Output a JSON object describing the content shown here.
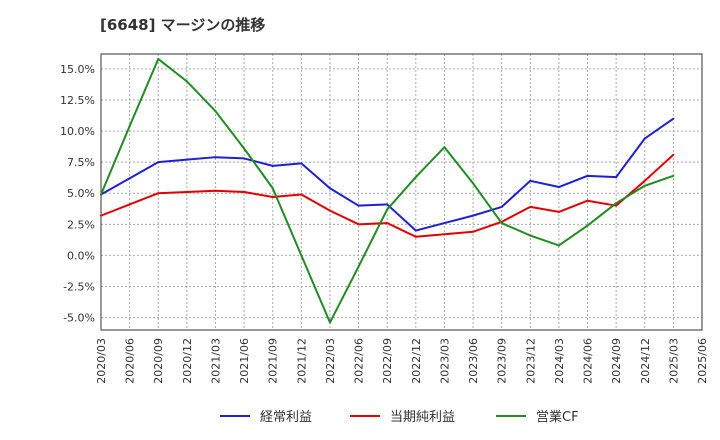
{
  "chart_data": {
    "type": "line",
    "title": "[6648]  マージンの推移",
    "x": [
      "2020/03",
      "2020/06",
      "2020/09",
      "2020/12",
      "2021/03",
      "2021/06",
      "2021/09",
      "2021/12",
      "2022/03",
      "2022/06",
      "2022/09",
      "2022/12",
      "2023/03",
      "2023/06",
      "2023/09",
      "2023/12",
      "2024/03",
      "2024/06",
      "2024/09",
      "2024/12",
      "2025/03",
      "2025/06"
    ],
    "y_ticks": [
      "15.0%",
      "12.5%",
      "10.0%",
      "7.5%",
      "5.0%",
      "2.5%",
      "0.0%",
      "-2.5%",
      "-5.0%"
    ],
    "ylim": [
      -6.0,
      16.2
    ],
    "grid": true,
    "legend_position": "bottom",
    "series": [
      {
        "name": "経常利益",
        "color": "#1f1fd0",
        "values": [
          4.9,
          6.2,
          7.5,
          7.7,
          7.9,
          7.8,
          7.2,
          7.4,
          5.4,
          4.0,
          4.1,
          2.0,
          2.6,
          3.2,
          3.9,
          6.0,
          5.5,
          6.4,
          6.3,
          9.4,
          11.0,
          null
        ]
      },
      {
        "name": "当期純利益",
        "color": "#e00000",
        "values": [
          3.2,
          4.1,
          5.0,
          5.1,
          5.2,
          5.1,
          4.7,
          4.9,
          3.6,
          2.5,
          2.6,
          1.5,
          1.7,
          1.9,
          2.7,
          3.9,
          3.5,
          4.4,
          4.0,
          6.0,
          8.1,
          null
        ]
      },
      {
        "name": "営業CF",
        "color": "#228b22",
        "values": [
          4.9,
          10.4,
          15.8,
          14.0,
          11.6,
          8.6,
          5.4,
          0.0,
          -5.4,
          -0.9,
          3.7,
          6.3,
          8.7,
          5.8,
          2.6,
          1.6,
          0.8,
          2.4,
          4.2,
          5.6,
          6.4,
          null
        ]
      }
    ]
  }
}
